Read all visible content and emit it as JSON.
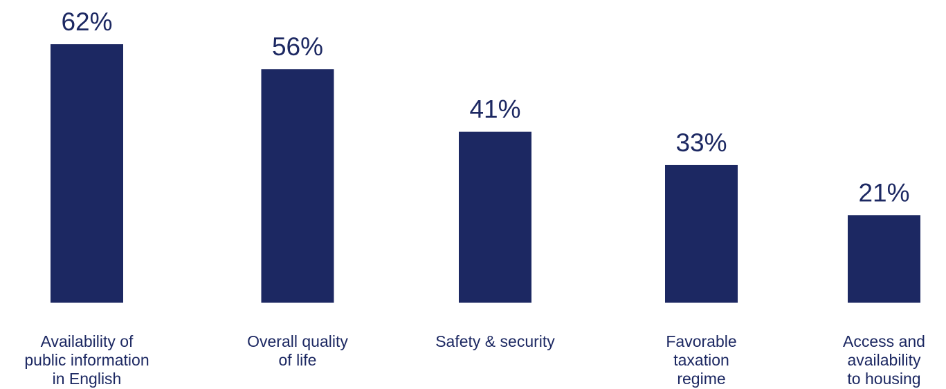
{
  "chart_data": {
    "type": "bar",
    "title": "",
    "xlabel": "",
    "ylabel": "",
    "categories": [
      "Availability of public information in English",
      "Overall quality of life",
      "Safety & security",
      "Favorable taxation regime",
      "Access and availability to housing"
    ],
    "category_lines": [
      [
        "Availability of",
        "public information",
        "in English"
      ],
      [
        "Overall quality",
        "of life"
      ],
      [
        "Safety & security"
      ],
      [
        "Favorable",
        "taxation",
        "regime"
      ],
      [
        "Access and",
        "availability",
        "to housing"
      ]
    ],
    "values": [
      62,
      56,
      41,
      33,
      21
    ],
    "value_labels": [
      "62%",
      "56%",
      "41%",
      "33%",
      "21%"
    ],
    "ylim": [
      0,
      62
    ],
    "grid": false,
    "legend": "none",
    "colors": {
      "bar": "#1c2862",
      "text": "#1c2862",
      "category_text": "#1c2862"
    }
  }
}
